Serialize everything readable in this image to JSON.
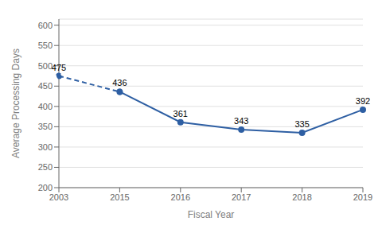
{
  "chart_data": {
    "type": "line",
    "categories": [
      "2003",
      "2015",
      "2016",
      "2017",
      "2018",
      "2019"
    ],
    "values": [
      475,
      436,
      361,
      343,
      335,
      392
    ],
    "color": "#2E5FA3",
    "marker": "circle",
    "xlabel": "Fiscal Year",
    "ylabel": "Average Processing Days",
    "ylim": [
      200,
      615
    ],
    "yticks": [
      200,
      250,
      300,
      350,
      400,
      450,
      500,
      550,
      600
    ],
    "grid": true,
    "data_labels": true
  }
}
